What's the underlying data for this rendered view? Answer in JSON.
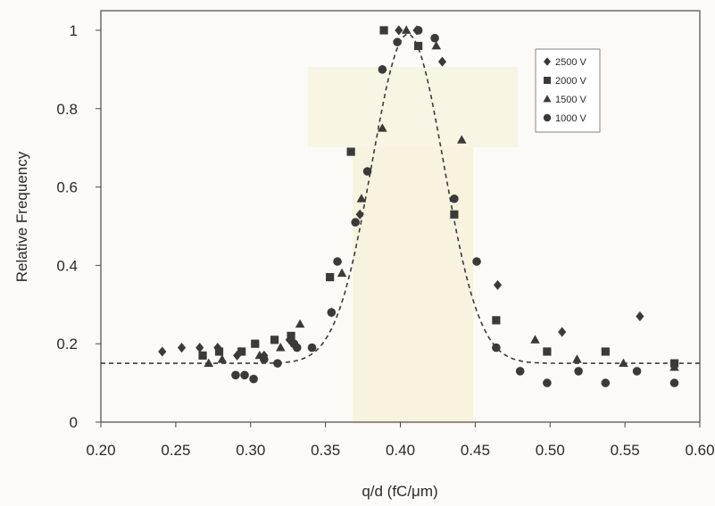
{
  "chart_data": {
    "type": "scatter",
    "title": "",
    "xlabel": "q/d (fC/μm)",
    "ylabel": "Relative Frequency",
    "xlim": [
      0.2,
      0.6
    ],
    "ylim": [
      0,
      1.05
    ],
    "x_ticks": [
      "0.20",
      "0.25",
      "0.30",
      "0.35",
      "0.40",
      "0.45",
      "0.50",
      "0.55",
      "0.60"
    ],
    "y_ticks": [
      "0",
      "0.2",
      "0.4",
      "0.6",
      "0.8",
      "1"
    ],
    "grid": false,
    "legend_position": "top-right",
    "series": [
      {
        "name": "2500 V",
        "marker": "diamond",
        "points": [
          [
            0.241,
            0.18
          ],
          [
            0.254,
            0.19
          ],
          [
            0.266,
            0.19
          ],
          [
            0.278,
            0.19
          ],
          [
            0.291,
            0.17
          ],
          [
            0.309,
            0.17
          ],
          [
            0.326,
            0.21
          ],
          [
            0.354,
            0.28
          ],
          [
            0.373,
            0.53
          ],
          [
            0.399,
            1.0
          ],
          [
            0.411,
            1.0
          ],
          [
            0.428,
            0.92
          ],
          [
            0.465,
            0.35
          ],
          [
            0.508,
            0.23
          ],
          [
            0.56,
            0.27
          ]
        ]
      },
      {
        "name": "2000 V",
        "marker": "square",
        "points": [
          [
            0.268,
            0.17
          ],
          [
            0.279,
            0.18
          ],
          [
            0.294,
            0.18
          ],
          [
            0.303,
            0.2
          ],
          [
            0.316,
            0.21
          ],
          [
            0.327,
            0.22
          ],
          [
            0.353,
            0.37
          ],
          [
            0.367,
            0.69
          ],
          [
            0.389,
            1.0
          ],
          [
            0.412,
            0.96
          ],
          [
            0.436,
            0.53
          ],
          [
            0.464,
            0.26
          ],
          [
            0.498,
            0.18
          ],
          [
            0.537,
            0.18
          ],
          [
            0.583,
            0.15
          ]
        ]
      },
      {
        "name": "1500 V",
        "marker": "triangle",
        "points": [
          [
            0.272,
            0.15
          ],
          [
            0.281,
            0.16
          ],
          [
            0.293,
            0.18
          ],
          [
            0.306,
            0.17
          ],
          [
            0.32,
            0.19
          ],
          [
            0.333,
            0.25
          ],
          [
            0.361,
            0.38
          ],
          [
            0.374,
            0.57
          ],
          [
            0.388,
            0.75
          ],
          [
            0.404,
            1.0
          ],
          [
            0.424,
            0.96
          ],
          [
            0.441,
            0.72
          ],
          [
            0.49,
            0.21
          ],
          [
            0.518,
            0.16
          ],
          [
            0.549,
            0.15
          ],
          [
            0.583,
            0.14
          ]
        ]
      },
      {
        "name": "1000 V",
        "marker": "circle",
        "points": [
          [
            0.29,
            0.12
          ],
          [
            0.296,
            0.12
          ],
          [
            0.302,
            0.11
          ],
          [
            0.309,
            0.16
          ],
          [
            0.318,
            0.15
          ],
          [
            0.329,
            0.2
          ],
          [
            0.331,
            0.19
          ],
          [
            0.341,
            0.19
          ],
          [
            0.354,
            0.28
          ],
          [
            0.358,
            0.41
          ],
          [
            0.37,
            0.51
          ],
          [
            0.378,
            0.64
          ],
          [
            0.388,
            0.9
          ],
          [
            0.398,
            0.97
          ],
          [
            0.412,
            1.0
          ],
          [
            0.423,
            0.98
          ],
          [
            0.436,
            0.57
          ],
          [
            0.451,
            0.41
          ],
          [
            0.464,
            0.19
          ],
          [
            0.48,
            0.13
          ],
          [
            0.498,
            0.1
          ],
          [
            0.519,
            0.13
          ],
          [
            0.537,
            0.1
          ],
          [
            0.558,
            0.13
          ],
          [
            0.583,
            0.1
          ]
        ]
      }
    ],
    "fit_curve": {
      "style": "dashed",
      "baseline": 0.15,
      "peak": 0.99,
      "center": 0.405,
      "sigma": 0.024
    }
  },
  "colors": {
    "marker": "#3c3a38",
    "axis": "#4a4a4a",
    "background": "#fbfaf6",
    "highlight": "#f8f3df"
  }
}
